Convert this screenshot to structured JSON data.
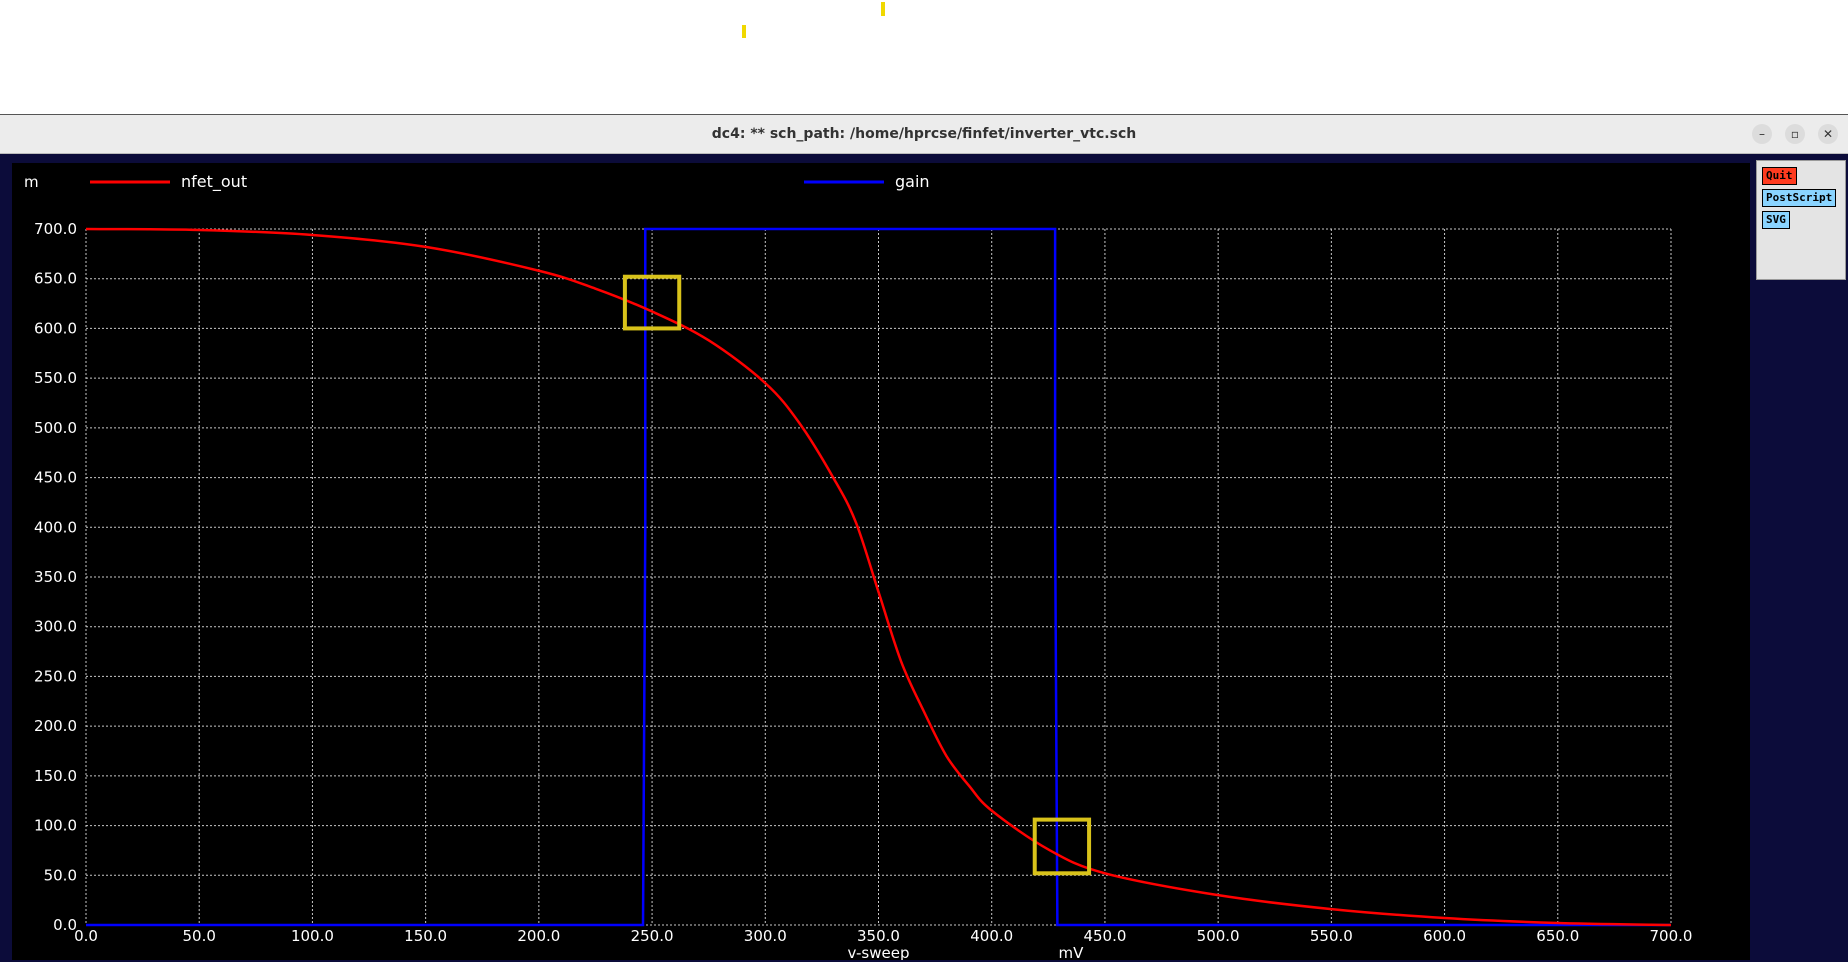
{
  "window": {
    "title": "dc4: ** sch_path: /home/hprcse/finfet/inverter_vtc.sch",
    "controls": [
      "–",
      "▫",
      "✕"
    ]
  },
  "side_panel": {
    "buttons": [
      {
        "label": "Quit",
        "color": "#ff3b1f"
      },
      {
        "label": "PostScript",
        "color": "#8ad4ff"
      },
      {
        "label": "SVG",
        "color": "#8ad4ff"
      }
    ]
  },
  "chart_data": {
    "type": "line",
    "y_unit_label": "m",
    "xlabel": "v-sweep",
    "x_unit_label": "mV",
    "xlim": [
      0,
      700
    ],
    "ylim": [
      0,
      700
    ],
    "x_ticks": [
      "0.0",
      "50.0",
      "100.0",
      "150.0",
      "200.0",
      "250.0",
      "300.0",
      "350.0",
      "400.0",
      "450.0",
      "500.0",
      "550.0",
      "600.0",
      "650.0",
      "700.0"
    ],
    "y_ticks": [
      "0.0",
      "50.0",
      "100.0",
      "150.0",
      "200.0",
      "250.0",
      "300.0",
      "350.0",
      "400.0",
      "450.0",
      "500.0",
      "550.0",
      "600.0",
      "650.0",
      "700.0"
    ],
    "grid": true,
    "series": [
      {
        "name": "nfet_out",
        "color": "#ff0000",
        "x": [
          0,
          50,
          100,
          150,
          200,
          225,
          250,
          275,
          300,
          315,
          330,
          340,
          350,
          360,
          370,
          380,
          390,
          400,
          425,
          450,
          500,
          550,
          600,
          650,
          700
        ],
        "y": [
          700,
          699,
          694,
          682,
          658,
          640,
          617,
          588,
          545,
          505,
          450,
          405,
          335,
          265,
          215,
          170,
          140,
          115,
          76,
          52,
          30,
          16,
          7,
          2,
          0
        ]
      },
      {
        "name": "gain",
        "color": "#0000ff",
        "x": [
          0,
          246,
          247,
          247,
          248,
          428,
          428,
          429,
          700
        ],
        "y": [
          0,
          0,
          400,
          700,
          700,
          700,
          400,
          0,
          0
        ]
      }
    ],
    "highlight_boxes": [
      {
        "x": [
          238,
          262
        ],
        "y": [
          600,
          652
        ]
      },
      {
        "x": [
          419,
          443
        ],
        "y": [
          52,
          106
        ]
      }
    ],
    "highlight_color": "#d8c21a"
  }
}
